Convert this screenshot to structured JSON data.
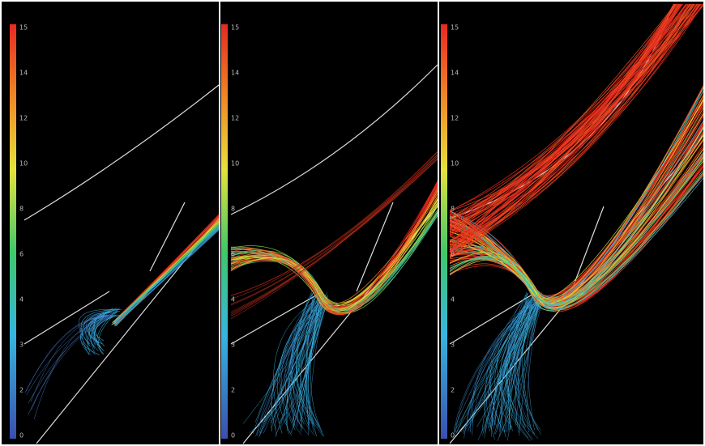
{
  "panels": [
    {
      "colorbar_labels": [
        "15",
        "14",
        "12",
        "10",
        "8",
        "6",
        "4",
        "3",
        "2",
        "0"
      ]
    },
    {
      "colorbar_labels": [
        "15",
        "14",
        "12",
        "10",
        "8",
        "6",
        "4",
        "3",
        "2",
        "0"
      ]
    },
    {
      "colorbar_labels": [
        "15",
        "14",
        "12",
        "10",
        "8",
        "6",
        "4",
        "3",
        "2",
        "0"
      ]
    }
  ]
}
